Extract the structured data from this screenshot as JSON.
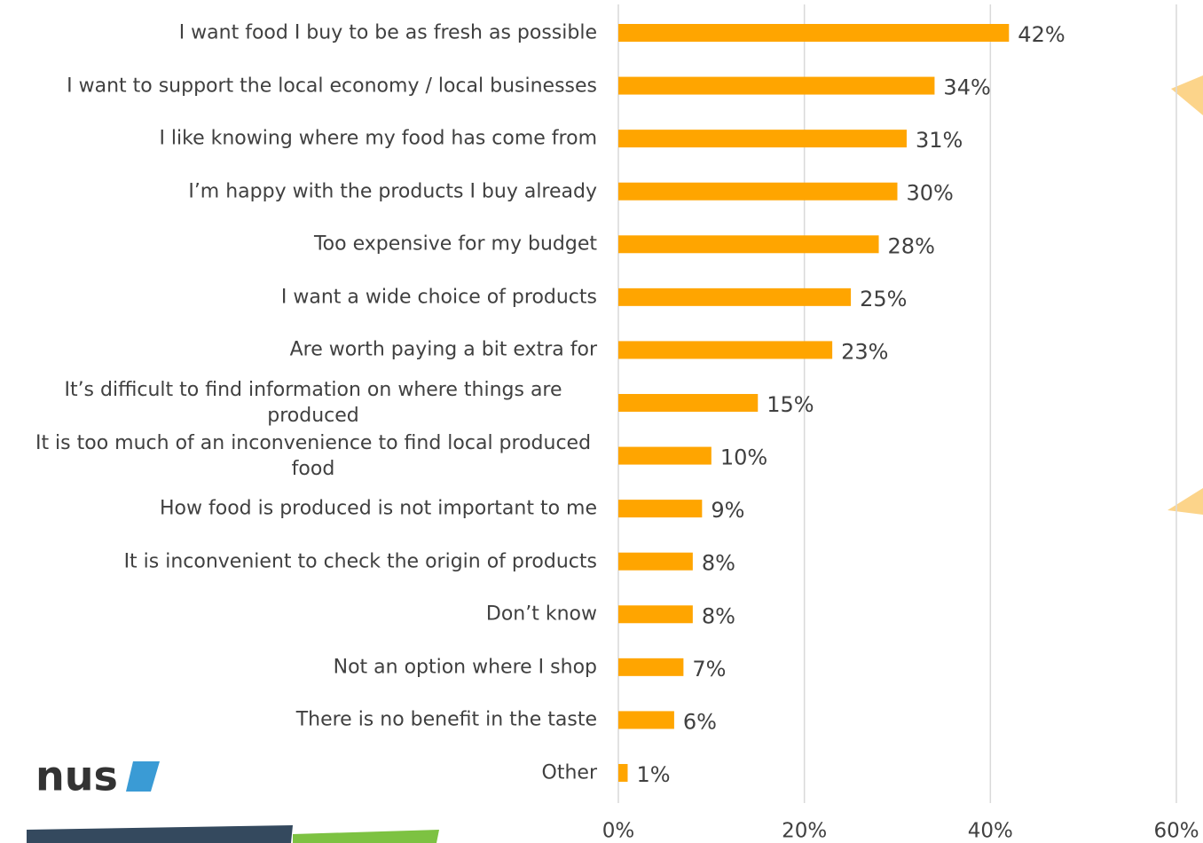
{
  "logo": "nus",
  "chart_data": {
    "type": "barh",
    "categories": [
      "I want food I buy to be as fresh as possible",
      "I want to support the local economy / local businesses",
      "I like knowing where my food has come from",
      "I’m happy with the products I buy already",
      "Too expensive for my budget",
      "I want a wide choice of products",
      "Are worth paying a bit extra for",
      "It’s difficult to find information on where things are produced",
      "It is too much of an inconvenience to find local produced food",
      "How food is produced is not important to me",
      "It is inconvenient to check the origin of products",
      "Don’t know",
      "Not an option where I shop",
      "There is no benefit in the taste",
      "Other"
    ],
    "values": [
      42,
      34,
      31,
      30,
      28,
      25,
      23,
      15,
      10,
      9,
      8,
      8,
      7,
      6,
      1
    ],
    "value_labels": [
      "42%",
      "34%",
      "31%",
      "30%",
      "28%",
      "25%",
      "23%",
      "15%",
      "10%",
      "9%",
      "8%",
      "8%",
      "7%",
      "6%",
      "1%"
    ],
    "color": "#ffa500",
    "xlim": [
      0,
      60
    ],
    "xticks": [
      {
        "value": 0,
        "label": "0%"
      },
      {
        "value": 20,
        "label": "20%"
      },
      {
        "value": 40,
        "label": "40%"
      },
      {
        "value": 60,
        "label": "60%"
      }
    ],
    "grid": true
  }
}
